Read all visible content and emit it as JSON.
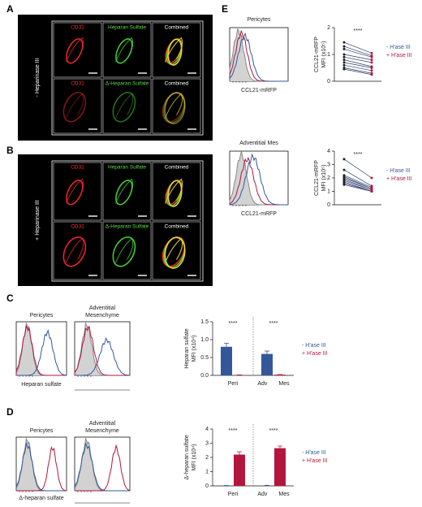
{
  "figure": {
    "A": {
      "letter": "A",
      "condition": "- Heparinase III",
      "labels": [
        [
          "CD31",
          "Heparan Sulfate",
          "Combined"
        ],
        [
          "CD31",
          "Δ-Heparan Sulfate",
          "Combined"
        ]
      ]
    },
    "B": {
      "letter": "B",
      "condition": "+ Heparinase III",
      "labels": [
        [
          "CD31",
          "Heparan Sulfate",
          "Combined"
        ],
        [
          "CD31",
          "Δ-Heparan Sulfate",
          "Combined"
        ]
      ]
    },
    "C": {
      "letter": "C",
      "hist_titles": [
        "Pericytes",
        "Adventitial",
        "Mesenchyme"
      ],
      "hist_xlabel": "Heparan sulfate"
    },
    "D": {
      "letter": "D",
      "hist_titles": [
        "Pericytes",
        "Adventitial",
        "Mesenchyme"
      ],
      "hist_xlabel": "Δ-heparan sulfate"
    },
    "E": {
      "letter": "E",
      "hist_titles": [
        "Pericytes",
        "Adventitial Mes"
      ],
      "hist_xlabel": [
        "CCL21-mRFP",
        "CCL21-mRFP"
      ]
    }
  },
  "chart_data": [
    {
      "type": "bar",
      "ylabel": [
        "Heparan sulfate",
        "MFI (x10⁴)"
      ],
      "categories": [
        "Peri",
        "Adv Mes"
      ],
      "annotations": [
        "****",
        "****"
      ],
      "series": [
        {
          "name": "- H'ase III",
          "color": "#33589a",
          "values": [
            0.8,
            0.6
          ],
          "errors": [
            0.1,
            0.08
          ]
        },
        {
          "name": "+ H'ase III",
          "color": "#b3163c",
          "values": [
            0.01,
            0.02
          ],
          "errors": [
            0.005,
            0.005
          ]
        }
      ],
      "ylim": [
        0,
        1.5
      ],
      "yticks": [
        {
          "value": 0,
          "label": "0.0"
        },
        0.5,
        {
          "value": 1,
          "label": "1.0"
        },
        1.5
      ]
    },
    {
      "type": "bar",
      "ylabel": [
        "Δ-heparan sulfate",
        "MFI (x10⁴)"
      ],
      "categories": [
        "Peri",
        "Adv Mes"
      ],
      "annotations": [
        "****",
        "****"
      ],
      "series": [
        {
          "name": "- H'ase III",
          "color": "#33589a",
          "values": [
            0.02,
            0.03
          ],
          "errors": [
            0.01,
            0.01
          ]
        },
        {
          "name": "+ H'ase III",
          "color": "#b3163c",
          "values": [
            2.2,
            2.65
          ],
          "errors": [
            0.2,
            0.15
          ]
        }
      ],
      "ylim": [
        0,
        4
      ],
      "yticks": [
        0,
        1,
        2,
        3,
        4
      ]
    },
    {
      "type": "paired",
      "ylabel": [
        "CCL21-mRFP",
        "MFI (x10⁵)"
      ],
      "annotations": [
        "****"
      ],
      "series": [
        {
          "name": "- H'ase III",
          "color": "#33589a",
          "values": [
            1.45,
            1.3,
            1.2,
            1.0,
            0.9,
            0.8,
            0.7,
            0.6,
            0.5,
            0.45
          ]
        },
        {
          "name": "+ H'ase III",
          "color": "#b3163c",
          "values": [
            1.05,
            0.95,
            0.9,
            0.8,
            0.7,
            0.55,
            0.5,
            0.4,
            0.3,
            0.25
          ]
        }
      ],
      "ylim": [
        0,
        2
      ],
      "yticks": [
        0,
        1,
        2
      ]
    },
    {
      "type": "paired",
      "ylabel": [
        "CCL21-mRFP",
        "MFI (x10⁵)"
      ],
      "annotations": [
        "****"
      ],
      "series": [
        {
          "name": "- H'ase III",
          "color": "#33589a",
          "values": [
            3.4,
            2.6,
            2.2,
            2.1,
            2.0,
            1.9,
            1.8,
            1.7,
            1.6,
            1.5
          ]
        },
        {
          "name": "+ H'ase III",
          "color": "#b3163c",
          "values": [
            2.0,
            1.4,
            1.3,
            1.2,
            1.2,
            1.1,
            1.1,
            1.0,
            1.0,
            1.0
          ]
        }
      ],
      "ylim": [
        0,
        4
      ],
      "yticks": [
        0,
        1,
        2,
        3,
        4
      ]
    }
  ]
}
